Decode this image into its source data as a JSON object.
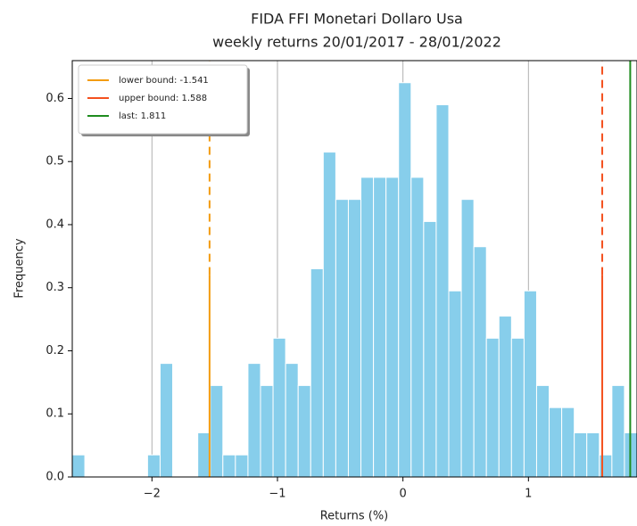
{
  "chart_data": {
    "type": "histogram",
    "title": [
      "FIDA FFI Monetari Dollaro Usa",
      "weekly returns 20/01/2017 - 28/01/2022"
    ],
    "x_label": "Returns (%)",
    "y_label": "Frequency",
    "bins": [
      -2.635,
      -2.535,
      -2.435,
      -2.335,
      -2.235,
      -2.135,
      -2.035,
      -1.935,
      -1.835,
      -1.735,
      -1.635,
      -1.535,
      -1.435,
      -1.335,
      -1.235,
      -1.135,
      -1.035,
      -0.935,
      -0.835,
      -0.735,
      -0.635,
      -0.535,
      -0.435,
      -0.335,
      -0.235,
      -0.135,
      -0.035,
      0.065,
      0.165,
      0.265,
      0.365,
      0.465,
      0.565,
      0.665,
      0.765,
      0.865,
      0.965,
      1.065,
      1.165,
      1.265,
      1.365,
      1.465,
      1.565,
      1.665,
      1.765,
      1.865
    ],
    "values": [
      0.035,
      0,
      0,
      0,
      0,
      0,
      0.035,
      0.18,
      0,
      0,
      0.07,
      0.145,
      0.035,
      0.035,
      0.18,
      0.145,
      0.22,
      0.18,
      0.145,
      0.33,
      0.515,
      0.44,
      0.44,
      0.475,
      0.475,
      0.475,
      0.625,
      0.475,
      0.405,
      0.59,
      0.295,
      0.44,
      0.365,
      0.22,
      0.255,
      0.22,
      0.295,
      0.145,
      0.11,
      0.11,
      0.07,
      0.07,
      0.035,
      0.145,
      0.07
    ],
    "color": "#87ceeb",
    "xlim": [
      -2.635,
      1.865
    ],
    "ylim": [
      0,
      0.66
    ],
    "xticks": [
      {
        "value": -2,
        "label": "−2"
      },
      {
        "value": -1,
        "label": "−1"
      },
      {
        "value": 0,
        "label": "0"
      },
      {
        "value": 1,
        "label": "1"
      }
    ],
    "yticks": [
      {
        "value": 0,
        "label": "0.0"
      },
      0.1,
      0.2,
      0.3,
      0.4,
      0.5,
      0.6
    ],
    "grid": "x",
    "legend": "upper left",
    "lines": [
      {
        "name": "lower bound: -1.541",
        "value": -1.541,
        "color": "#f39c12",
        "solid_ymax": 0.32
      },
      {
        "name": "upper bound: 1.588",
        "value": 1.588,
        "color": "#f4511e",
        "solid_ymax": 0.32
      },
      {
        "name": "last: 1.811",
        "value": 1.811,
        "color": "#1e8c1e"
      }
    ]
  }
}
